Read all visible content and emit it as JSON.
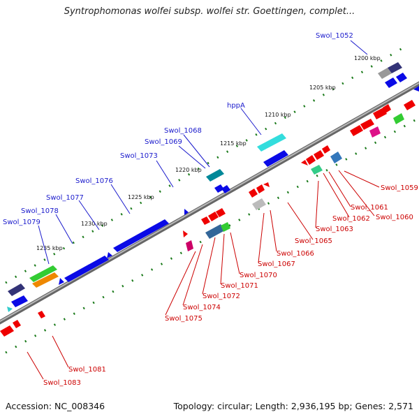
{
  "title": "Syntrophomonas wolfei subsp. wolfei str. Goettingen, complet...",
  "footer": {
    "accession": "Accession: NC_008346",
    "summary": "Topology: circular; Length: 2,936,195 bp; Genes: 2,571"
  },
  "colors": {
    "blue_gene": "#0a0ae6",
    "red_gene": "#ee0000",
    "backbone": "#8a8a8a",
    "tick": "#1a7a1a",
    "blue_label": "#1a1acc",
    "red_label": "#cc0000"
  },
  "scale_labels": [
    "1200 kbp",
    "1205 kbp",
    "1210 kbp",
    "1215 kbp",
    "1220 kbp",
    "1225 kbp",
    "1230 kbp",
    "1235 kbp"
  ],
  "top_labels": [
    "Swol_1052",
    "hppA",
    "Swol_1068",
    "Swol_1069",
    "Swol_1073",
    "Swol_1076",
    "Swol_1077",
    "Swol_1078",
    "Swol_1079"
  ],
  "bottom_labels": [
    "Swol_1059",
    "Swol_1060",
    "Swol_1061",
    "Swol_1062",
    "Swol_1063",
    "Swol_1065",
    "Swol_1066",
    "Swol_1067",
    "Swol_1070",
    "Swol_1071",
    "Swol_1072",
    "Swol_1074",
    "Swol_1075",
    "Swol_1081",
    "Swol_1083"
  ]
}
